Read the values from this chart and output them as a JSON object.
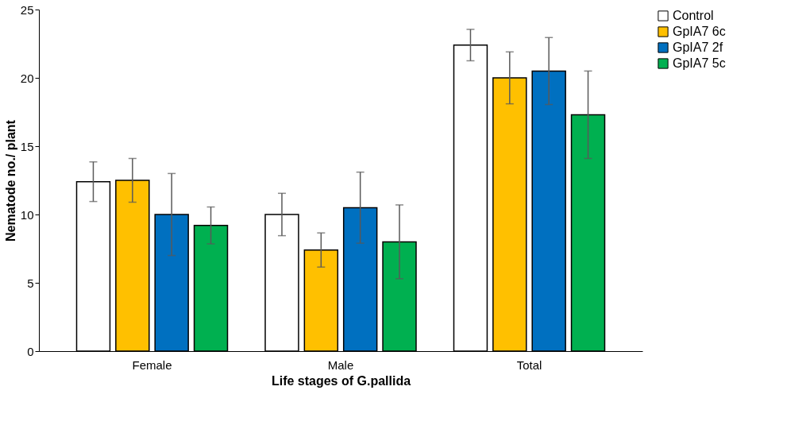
{
  "chart_data": {
    "type": "bar",
    "xlabel": "Life stages of G.pallida",
    "ylabel": "Nematode no./ plant",
    "categories": [
      "Female",
      "Male",
      "Total"
    ],
    "series": [
      {
        "name": "Control",
        "color": "#ffffff",
        "values": [
          12.4,
          10.0,
          22.4
        ],
        "errors": [
          1.45,
          1.55,
          1.15
        ]
      },
      {
        "name": "GpIA7 6c",
        "color": "#ffc000",
        "values": [
          12.5,
          7.4,
          20.0
        ],
        "errors": [
          1.6,
          1.25,
          1.9
        ]
      },
      {
        "name": "GpIA7 2f",
        "color": "#0070c0",
        "values": [
          10.0,
          10.5,
          20.5
        ],
        "errors": [
          3.0,
          2.6,
          2.45
        ]
      },
      {
        "name": "GpIA7 5c",
        "color": "#00b050",
        "values": [
          9.2,
          8.0,
          17.3
        ],
        "errors": [
          1.35,
          2.7,
          3.2
        ]
      }
    ],
    "ylim": [
      0,
      25
    ],
    "yticks": [
      0,
      5,
      10,
      15,
      20,
      25
    ],
    "grid": false,
    "legend": "right"
  }
}
